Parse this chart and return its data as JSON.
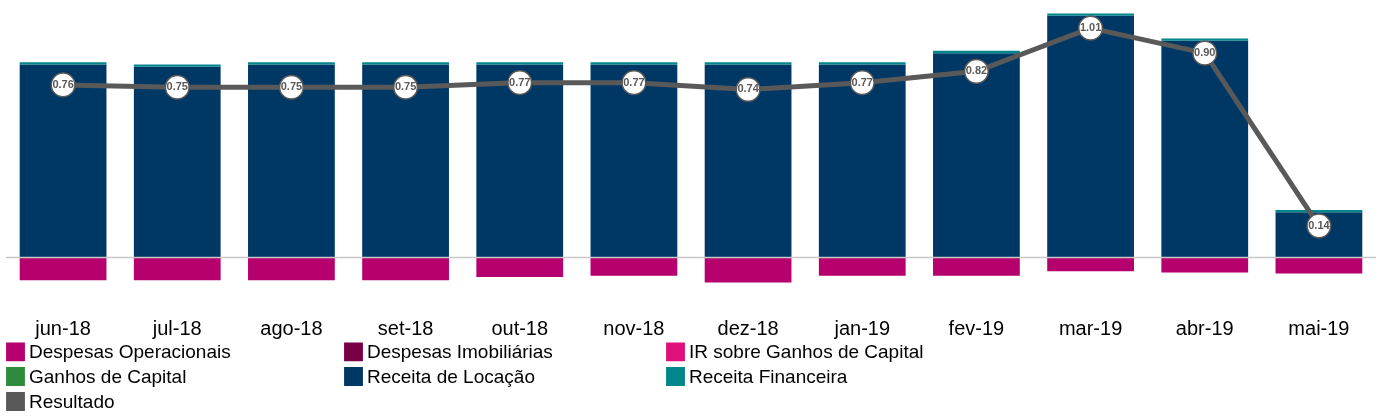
{
  "chart_data": {
    "type": "bar",
    "stacked": true,
    "categories": [
      "jun-18",
      "jul-18",
      "ago-18",
      "set-18",
      "out-18",
      "nov-18",
      "dez-18",
      "jan-19",
      "fev-19",
      "mar-19",
      "abr-19",
      "mai-19"
    ],
    "series": [
      {
        "name": "Despesas Operacionais",
        "color": "#b5006e",
        "values": [
          -0.1,
          -0.1,
          -0.1,
          -0.1,
          -0.085,
          -0.08,
          -0.11,
          -0.08,
          -0.08,
          -0.06,
          -0.065,
          -0.07
        ]
      },
      {
        "name": "Despesas Imobiliárias",
        "color": "#7a0046",
        "values": [
          0,
          0,
          0,
          0,
          0,
          0,
          0,
          0,
          0,
          0,
          0,
          0
        ]
      },
      {
        "name": "IR sobre Ganhos de Capital",
        "color": "#e0107a",
        "values": [
          0,
          0,
          0,
          0,
          0,
          0,
          0,
          0,
          0,
          0,
          0,
          0
        ]
      },
      {
        "name": "Ganhos de Capital",
        "color": "#2e8b3e",
        "values": [
          0,
          0,
          0,
          0,
          0,
          0,
          0,
          0,
          0,
          0,
          0,
          0
        ]
      },
      {
        "name": "Receita de Locação",
        "color": "#003865",
        "values": [
          0.85,
          0.84,
          0.85,
          0.85,
          0.85,
          0.85,
          0.85,
          0.85,
          0.9,
          1.065,
          0.955,
          0.2
        ]
      },
      {
        "name": "Receita Financeira",
        "color": "#00868b",
        "values": [
          0.01,
          0.01,
          0.01,
          0.01,
          0.01,
          0.01,
          0.01,
          0.01,
          0.01,
          0.01,
          0.01,
          0.01
        ]
      },
      {
        "name": "Resultado",
        "color": "#595959",
        "type": "line",
        "marker": "circle",
        "values": [
          0.76,
          0.75,
          0.75,
          0.75,
          0.77,
          0.77,
          0.74,
          0.77,
          0.82,
          1.01,
          0.9,
          0.14
        ],
        "value_labels": [
          "0.76",
          "0.75",
          "0.75",
          "0.75",
          "0.77",
          "0.77",
          "0.74",
          "0.77",
          "0.82",
          "1.01",
          "0.90",
          "0.14"
        ]
      }
    ],
    "legend": "bottom",
    "tick_labels": "x",
    "grid": false
  }
}
